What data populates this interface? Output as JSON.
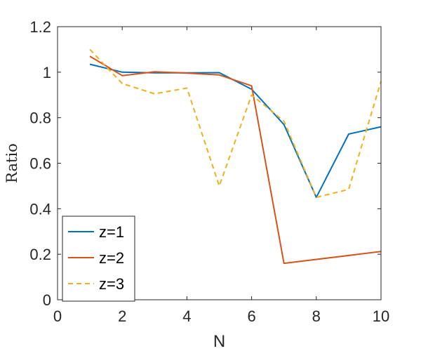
{
  "chart_data": {
    "type": "line",
    "title": "",
    "xlabel": "N",
    "ylabel": "Ratio",
    "xlim": [
      0,
      10
    ],
    "ylim": [
      0,
      1.2
    ],
    "xticks": [
      0,
      2,
      4,
      6,
      8,
      10
    ],
    "yticks": [
      0,
      0.2,
      0.4,
      0.6,
      0.8,
      1,
      1.2
    ],
    "xtick_labels": [
      "0",
      "2",
      "4",
      "6",
      "8",
      "10"
    ],
    "ytick_labels": [
      "0",
      "0.2",
      "0.4",
      "0.6",
      "0.8",
      "1",
      "1.2"
    ],
    "grid": false,
    "legend_position": "bottom-left",
    "series": [
      {
        "name": "z=1",
        "color": "#0072BD",
        "dash": "solid",
        "x": [
          1,
          2,
          3,
          4,
          5,
          6,
          7,
          8,
          9,
          10
        ],
        "y": [
          1.035,
          1.0,
          0.997,
          0.997,
          0.998,
          0.925,
          0.77,
          0.45,
          0.728,
          0.76
        ]
      },
      {
        "name": "z=2",
        "color": "#D95319",
        "dash": "solid",
        "x": [
          1,
          2,
          3,
          4,
          5,
          6,
          7,
          10
        ],
        "y": [
          1.07,
          0.985,
          1.002,
          0.996,
          0.988,
          0.94,
          0.16,
          0.212
        ]
      },
      {
        "name": "z=3",
        "color": "#EDB120",
        "dash": "dashed",
        "x": [
          1,
          2,
          3,
          4,
          5,
          6,
          7,
          8,
          9,
          10
        ],
        "y": [
          1.1,
          0.95,
          0.905,
          0.93,
          0.5,
          0.9,
          0.785,
          0.45,
          0.485,
          0.96
        ]
      }
    ]
  }
}
